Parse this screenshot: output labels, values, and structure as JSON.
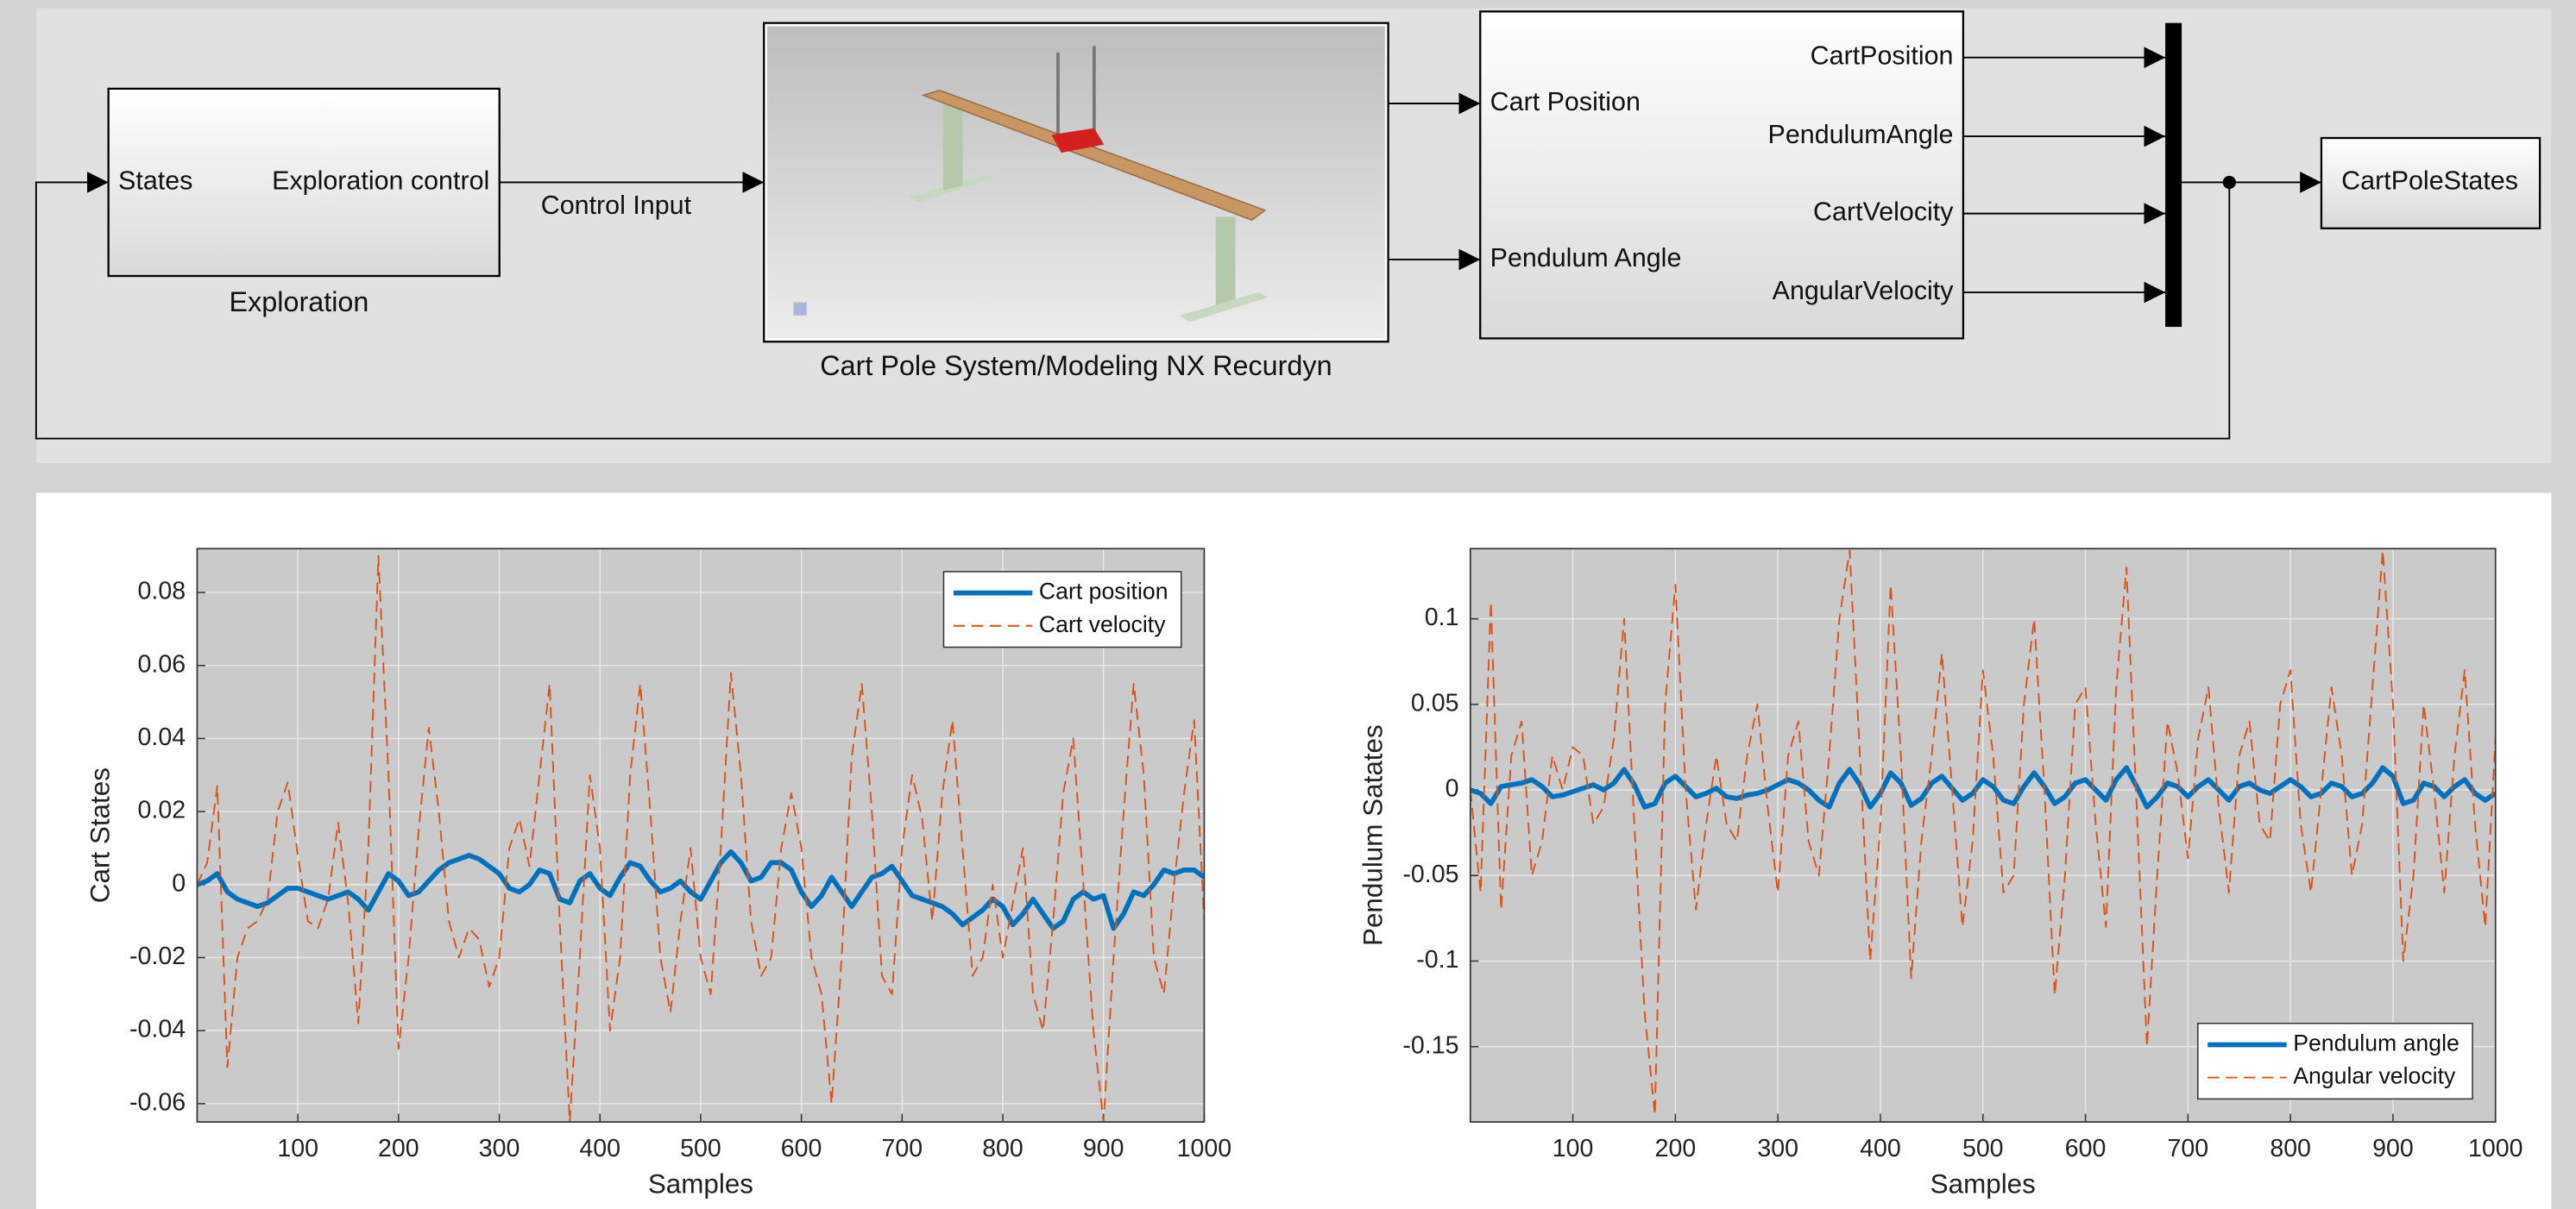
{
  "diagram": {
    "exploration": {
      "name": "Exploration",
      "input": "States",
      "output": "Exploration control"
    },
    "signal": "Control Input",
    "plant": {
      "name": "Cart Pole System/Modeling NX Recurdyn"
    },
    "demux": {
      "inputs": [
        "Cart Position",
        "Pendulum Angle"
      ],
      "outputs": [
        "CartPosition",
        "PendulumAngle",
        "CartVelocity",
        "AngularVelocity"
      ]
    },
    "scope": {
      "name": "CartPoleStates"
    }
  },
  "chart_data": [
    {
      "type": "line",
      "xlabel": "Samples",
      "ylabel": "Cart States",
      "xlim": [
        0,
        1000
      ],
      "ylim": [
        -0.065,
        0.092
      ],
      "xticks": [
        100,
        200,
        300,
        400,
        500,
        600,
        700,
        800,
        900,
        1000
      ],
      "yticks": [
        -0.06,
        -0.04,
        -0.02,
        0,
        0.02,
        0.04,
        0.06,
        0.08
      ],
      "grid": true,
      "legend": "upper right",
      "x": [
        0,
        10,
        20,
        30,
        40,
        50,
        60,
        70,
        80,
        90,
        100,
        110,
        120,
        130,
        140,
        150,
        160,
        170,
        180,
        190,
        200,
        210,
        220,
        230,
        240,
        250,
        260,
        270,
        280,
        290,
        300,
        310,
        320,
        330,
        340,
        350,
        360,
        370,
        380,
        390,
        400,
        410,
        420,
        430,
        440,
        450,
        460,
        470,
        480,
        490,
        500,
        510,
        520,
        530,
        540,
        550,
        560,
        570,
        580,
        590,
        600,
        610,
        620,
        630,
        640,
        650,
        660,
        670,
        680,
        690,
        700,
        710,
        720,
        730,
        740,
        750,
        760,
        770,
        780,
        790,
        800,
        810,
        820,
        830,
        840,
        850,
        860,
        870,
        880,
        890,
        900,
        910,
        920,
        930,
        940,
        950,
        960,
        970,
        980,
        990,
        1000
      ],
      "series": [
        {
          "name": "Cart position",
          "color": "#0072bd",
          "line_style": "solid",
          "values": [
            0,
            0.001,
            0.003,
            -0.002,
            -0.004,
            -0.005,
            -0.006,
            -0.005,
            -0.003,
            -0.001,
            -0.001,
            -0.002,
            -0.003,
            -0.004,
            -0.003,
            -0.002,
            -0.004,
            -0.007,
            -0.002,
            0.003,
            0.001,
            -0.003,
            -0.002,
            0.001,
            0.004,
            0.006,
            0.007,
            0.008,
            0.007,
            0.005,
            0.003,
            -0.001,
            -0.002,
            0,
            0.004,
            0.003,
            -0.004,
            -0.005,
            0.001,
            0.003,
            -0.001,
            -0.003,
            0.002,
            0.006,
            0.005,
            0.001,
            -0.002,
            -0.001,
            0.001,
            -0.002,
            -0.004,
            0.001,
            0.006,
            0.009,
            0.006,
            0.001,
            0.002,
            0.006,
            0.006,
            0.004,
            -0.002,
            -0.006,
            -0.003,
            0.002,
            -0.002,
            -0.006,
            -0.002,
            0.002,
            0.003,
            0.005,
            0.001,
            -0.003,
            -0.004,
            -0.005,
            -0.006,
            -0.008,
            -0.011,
            -0.009,
            -0.007,
            -0.004,
            -0.006,
            -0.011,
            -0.008,
            -0.004,
            -0.008,
            -0.012,
            -0.01,
            -0.004,
            -0.002,
            -0.004,
            -0.003,
            -0.012,
            -0.008,
            -0.002,
            -0.003,
            0,
            0.004,
            0.003,
            0.004,
            0.004,
            0.002
          ]
        },
        {
          "name": "Cart velocity",
          "color": "#d95319",
          "line_style": "dashed",
          "values": [
            0,
            0.006,
            0.027,
            -0.05,
            -0.02,
            -0.012,
            -0.01,
            -0.004,
            0.02,
            0.028,
            0.008,
            -0.01,
            -0.012,
            -0.004,
            0.017,
            -0.005,
            -0.038,
            0.01,
            0.09,
            0.03,
            -0.045,
            -0.02,
            0.015,
            0.043,
            0.02,
            -0.01,
            -0.02,
            -0.012,
            -0.015,
            -0.028,
            -0.02,
            0.01,
            0.018,
            0.005,
            0.03,
            0.055,
            -0.01,
            -0.065,
            -0.02,
            0.03,
            0.01,
            -0.04,
            -0.02,
            0.03,
            0.055,
            0.02,
            -0.02,
            -0.035,
            -0.01,
            0.01,
            -0.02,
            -0.03,
            0.01,
            0.058,
            0.03,
            -0.01,
            -0.025,
            -0.02,
            0.01,
            0.025,
            0.01,
            -0.02,
            -0.03,
            -0.06,
            -0.02,
            0.035,
            0.055,
            0.02,
            -0.025,
            -0.03,
            0.01,
            0.03,
            0.018,
            -0.01,
            0.025,
            0.045,
            0.01,
            -0.025,
            -0.02,
            0,
            -0.02,
            -0.005,
            0.01,
            -0.03,
            -0.04,
            -0.01,
            0.025,
            0.04,
            0,
            -0.04,
            -0.065,
            -0.02,
            0.02,
            0.055,
            0.03,
            -0.02,
            -0.03,
            0,
            0.025,
            0.045,
            -0.01
          ]
        }
      ]
    },
    {
      "type": "line",
      "xlabel": "Samples",
      "ylabel": "Pendulum Satates",
      "xlim": [
        0,
        1000
      ],
      "ylim": [
        -0.194,
        0.141
      ],
      "xticks": [
        100,
        200,
        300,
        400,
        500,
        600,
        700,
        800,
        900,
        1000
      ],
      "yticks": [
        -0.15,
        -0.1,
        -0.05,
        0,
        0.05,
        0.1
      ],
      "grid": true,
      "legend": "lower right",
      "x": [
        0,
        10,
        20,
        30,
        40,
        50,
        60,
        70,
        80,
        90,
        100,
        110,
        120,
        130,
        140,
        150,
        160,
        170,
        180,
        190,
        200,
        210,
        220,
        230,
        240,
        250,
        260,
        270,
        280,
        290,
        300,
        310,
        320,
        330,
        340,
        350,
        360,
        370,
        380,
        390,
        400,
        410,
        420,
        430,
        440,
        450,
        460,
        470,
        480,
        490,
        500,
        510,
        520,
        530,
        540,
        550,
        560,
        570,
        580,
        590,
        600,
        610,
        620,
        630,
        640,
        650,
        660,
        670,
        680,
        690,
        700,
        710,
        720,
        730,
        740,
        750,
        760,
        770,
        780,
        790,
        800,
        810,
        820,
        830,
        840,
        850,
        860,
        870,
        880,
        890,
        900,
        910,
        920,
        930,
        940,
        950,
        960,
        970,
        980,
        990,
        1000
      ],
      "series": [
        {
          "name": "Pendulum angle",
          "color": "#0072bd",
          "line_style": "solid",
          "values": [
            0,
            -0.002,
            -0.008,
            0.002,
            0.003,
            0.004,
            0.006,
            0.002,
            -0.004,
            -0.003,
            -0.001,
            0.001,
            0.003,
            0,
            0.004,
            0.012,
            0.003,
            -0.01,
            -0.008,
            0.004,
            0.008,
            0.002,
            -0.004,
            -0.002,
            0.001,
            -0.004,
            -0.005,
            -0.003,
            -0.002,
            0,
            0.003,
            0.006,
            0.004,
            0,
            -0.006,
            -0.01,
            0.004,
            0.012,
            0.003,
            -0.01,
            -0.002,
            0.01,
            0.004,
            -0.009,
            -0.005,
            0.004,
            0.008,
            0.001,
            -0.006,
            -0.002,
            0.006,
            0.002,
            -0.006,
            -0.008,
            0.002,
            0.01,
            0.002,
            -0.008,
            -0.004,
            0.004,
            0.006,
            0,
            -0.006,
            0.006,
            0.013,
            0.002,
            -0.01,
            -0.004,
            0.004,
            0.002,
            -0.004,
            0.002,
            0.006,
            0,
            -0.006,
            0.002,
            0.004,
            0,
            -0.002,
            0.002,
            0.006,
            0.002,
            -0.004,
            -0.002,
            0.004,
            0.002,
            -0.004,
            -0.002,
            0.004,
            0.013,
            0.008,
            -0.008,
            -0.006,
            0.004,
            0.002,
            -0.004,
            0.002,
            0.006,
            -0.002,
            -0.006,
            -0.002
          ]
        },
        {
          "name": "Angular velocity",
          "color": "#d95319",
          "line_style": "dashed",
          "values": [
            0,
            -0.06,
            0.11,
            -0.07,
            0.02,
            0.04,
            -0.05,
            -0.03,
            0.02,
            0,
            0.025,
            0.02,
            -0.02,
            -0.01,
            0.03,
            0.1,
            -0.02,
            -0.13,
            -0.19,
            0.05,
            0.12,
            0,
            -0.07,
            -0.02,
            0.02,
            -0.02,
            -0.03,
            0.02,
            0.05,
            -0.01,
            -0.06,
            0.02,
            0.04,
            -0.03,
            -0.05,
            0.02,
            0.1,
            0.14,
            0.02,
            -0.1,
            -0.02,
            0.12,
            0.02,
            -0.11,
            -0.03,
            0.02,
            0.08,
            0,
            -0.08,
            -0.03,
            0.07,
            0.02,
            -0.06,
            -0.05,
            0.05,
            0.1,
            0,
            -0.12,
            -0.05,
            0.05,
            0.06,
            -0.02,
            -0.08,
            0.06,
            0.13,
            -0.01,
            -0.15,
            -0.05,
            0.04,
            0.01,
            -0.04,
            0.03,
            0.06,
            -0.01,
            -0.06,
            0.02,
            0.04,
            -0.02,
            -0.03,
            0.05,
            0.07,
            -0.02,
            -0.06,
            0,
            0.06,
            0.02,
            -0.05,
            -0.02,
            0.06,
            0.14,
            0.05,
            -0.1,
            -0.05,
            0.05,
            0,
            -0.06,
            0.02,
            0.07,
            -0.02,
            -0.08,
            0.03
          ]
        }
      ]
    }
  ]
}
